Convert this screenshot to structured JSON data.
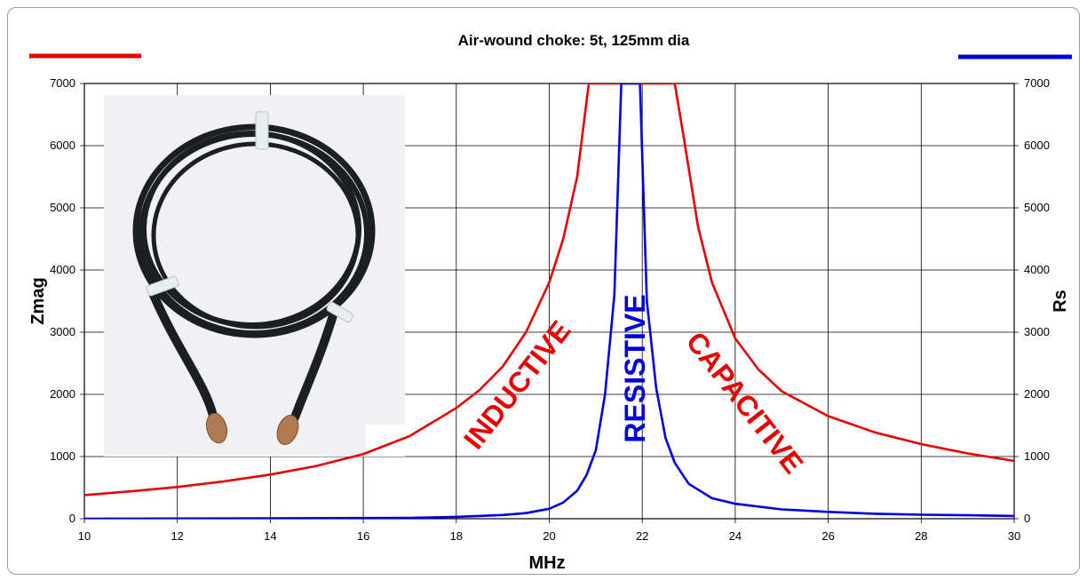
{
  "chart_data": {
    "type": "line",
    "title": "Air-wound choke: 5t, 125mm dia",
    "xlabel": "MHz",
    "ylabel_left": "Zmag",
    "ylabel_right": "Rs",
    "xlim": [
      10,
      30
    ],
    "ylim": [
      0,
      7000
    ],
    "xticks": [
      "10",
      "12",
      "14",
      "16",
      "18",
      "20",
      "22",
      "24",
      "26",
      "28",
      "30"
    ],
    "yticks": [
      "0",
      "1000",
      "2000",
      "3000",
      "4000",
      "5000",
      "6000",
      "7000"
    ],
    "grid": true,
    "legend": "line swatches only, top-left (red) and top-right (blue)",
    "series": [
      {
        "color": "#e60000",
        "axis": "left",
        "x": [
          10,
          11,
          12,
          13,
          14,
          15,
          16,
          17,
          18,
          18.5,
          19,
          19.5,
          20,
          20.3,
          20.6,
          20.85,
          22.7,
          22.9,
          23.2,
          23.5,
          24,
          24.5,
          25,
          26,
          27,
          28,
          29,
          30
        ],
        "y": [
          380,
          440,
          510,
          600,
          710,
          850,
          1040,
          1330,
          1780,
          2070,
          2450,
          3000,
          3800,
          4500,
          5500,
          7000,
          7000,
          6100,
          4700,
          3800,
          2900,
          2400,
          2050,
          1650,
          1390,
          1200,
          1050,
          930
        ]
      },
      {
        "color": "#0000dd",
        "axis": "right",
        "x": [
          10,
          14,
          17,
          18,
          19,
          19.5,
          20,
          20.3,
          20.6,
          20.8,
          21,
          21.2,
          21.4,
          21.55,
          21.95,
          22.1,
          22.3,
          22.5,
          22.7,
          23,
          23.5,
          24,
          25,
          26,
          27,
          28,
          29,
          30
        ],
        "y": [
          0,
          5,
          15,
          30,
          60,
          90,
          160,
          260,
          450,
          700,
          1100,
          2000,
          3600,
          7000,
          7000,
          3500,
          2100,
          1300,
          900,
          560,
          330,
          240,
          150,
          110,
          80,
          65,
          55,
          45
        ]
      }
    ],
    "annotations": [
      {
        "text": "INDUCTIVE",
        "color": "#e60000"
      },
      {
        "text": "RESISTIVE",
        "color": "#0000dd"
      },
      {
        "text": "CAPACITIVE",
        "color": "#e60000"
      }
    ],
    "inset_image": "photo-of-coiled-black-coax-cable"
  }
}
